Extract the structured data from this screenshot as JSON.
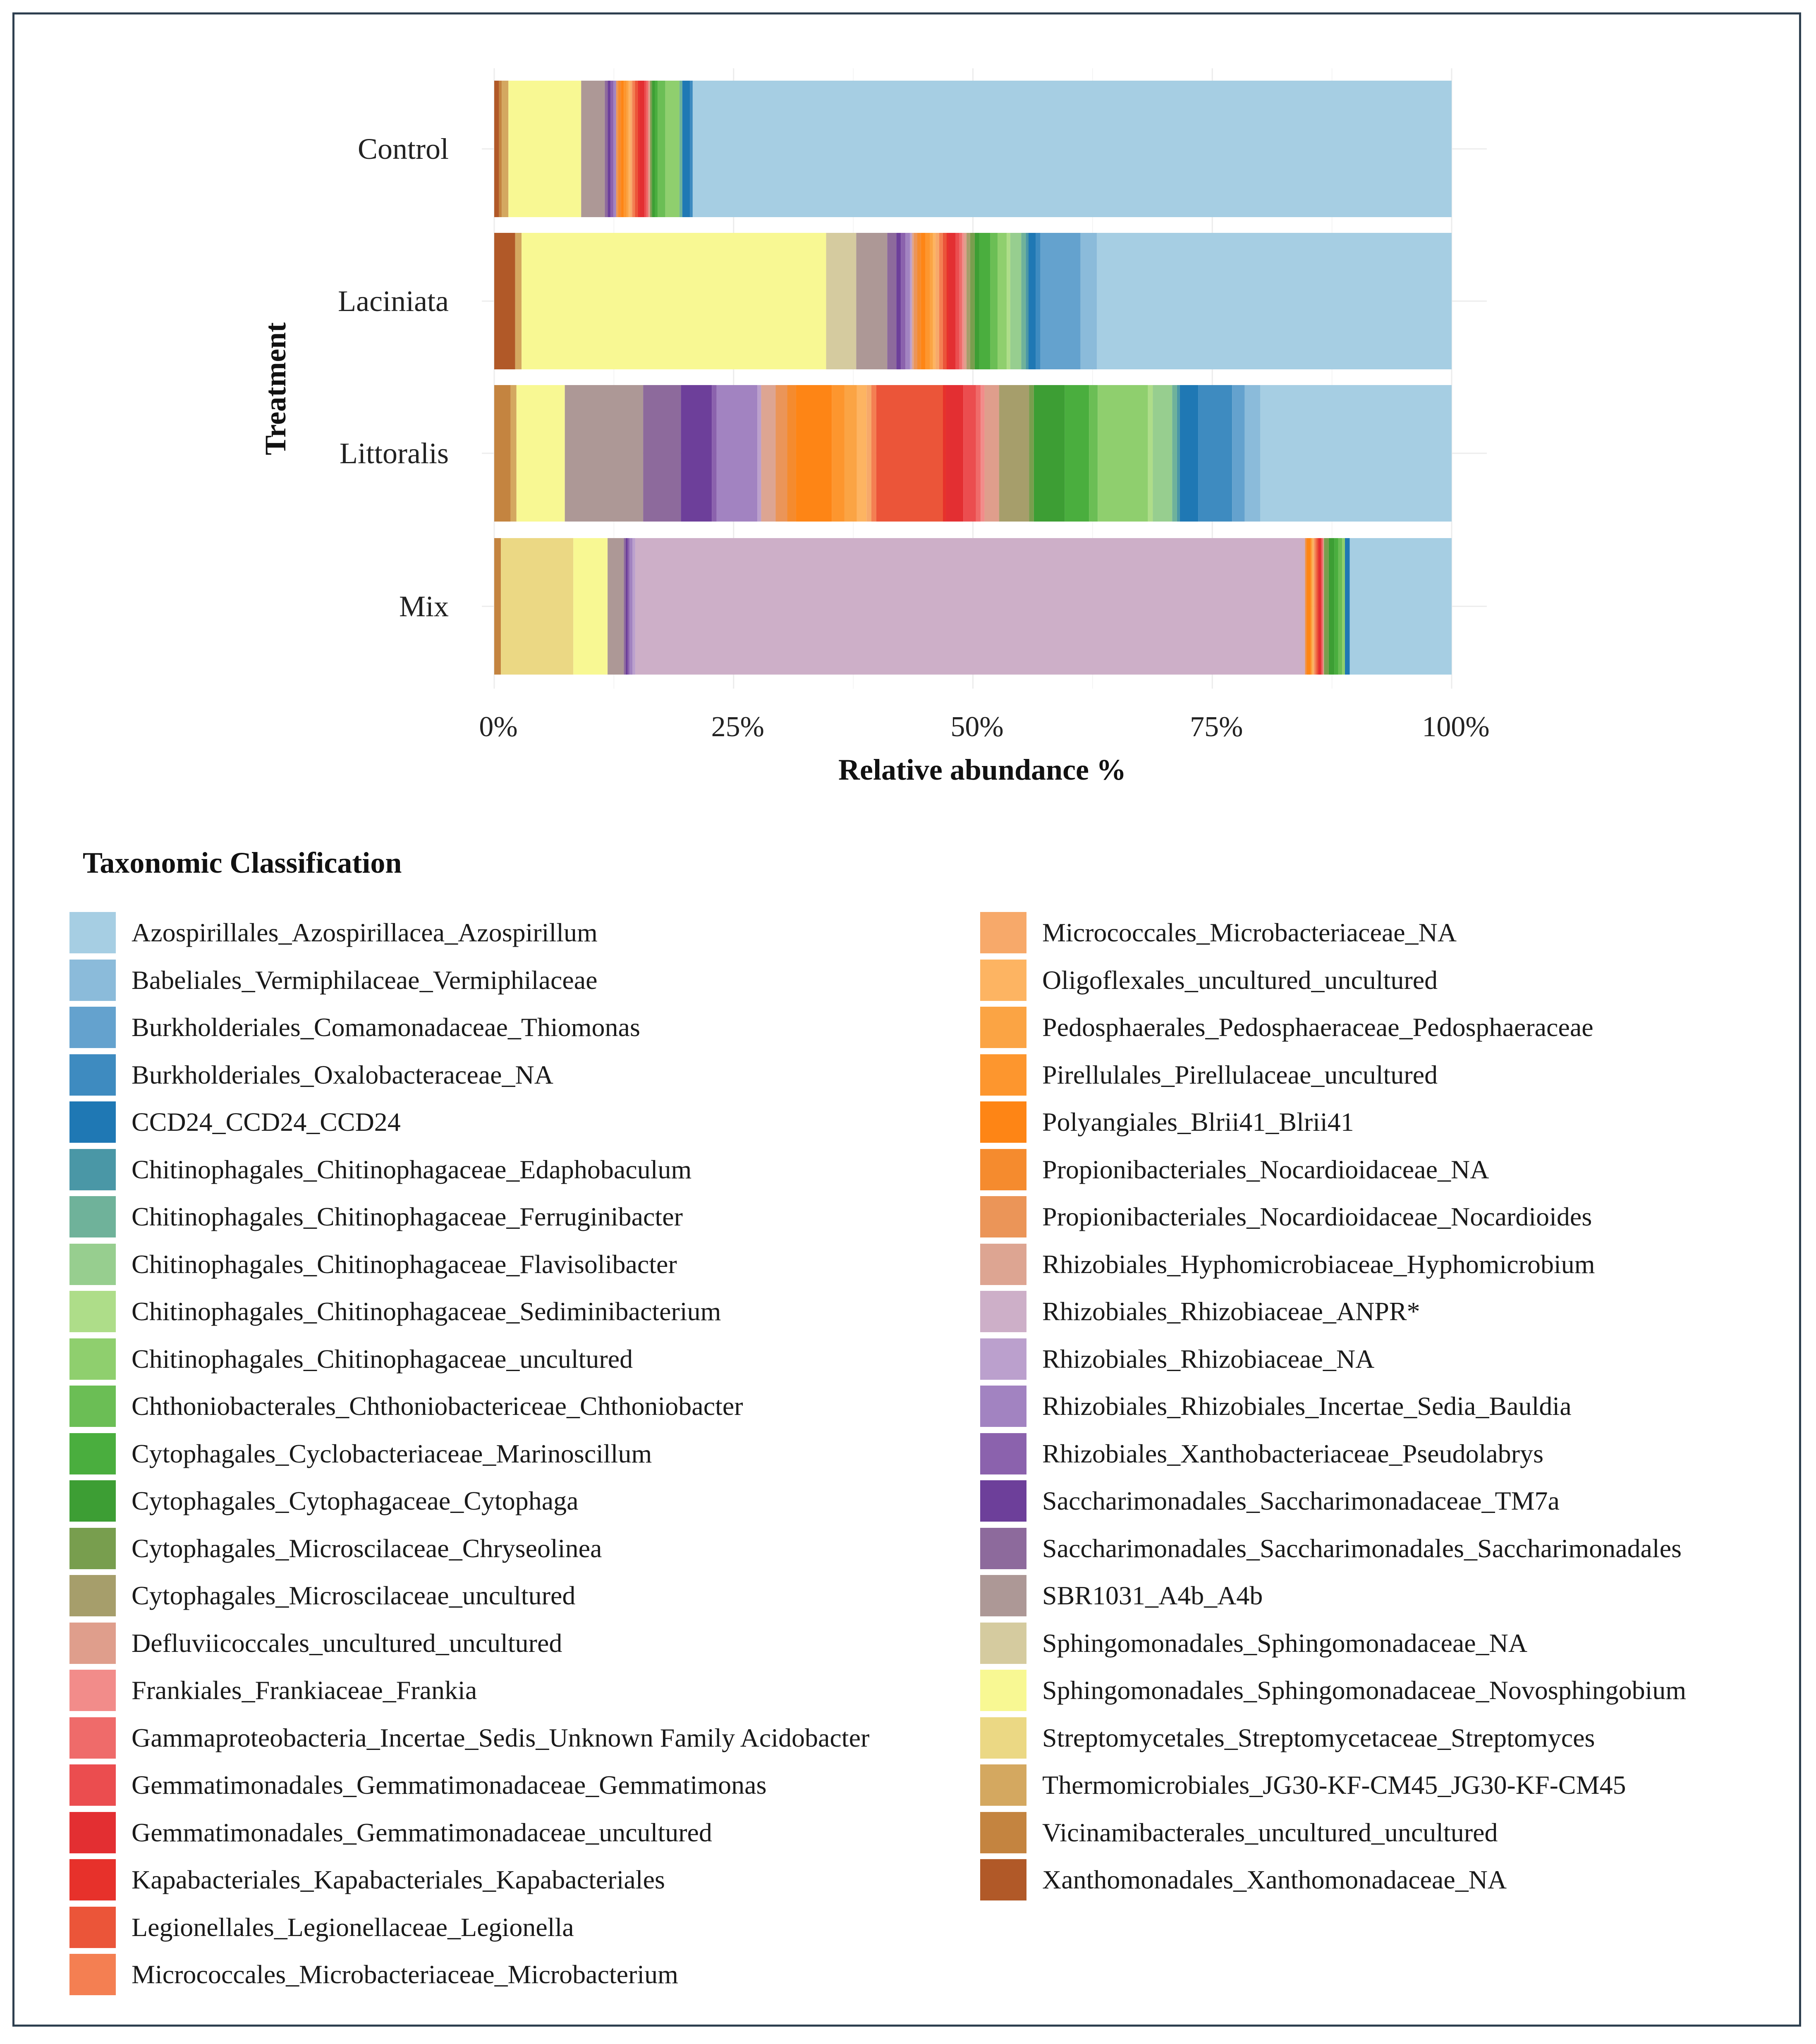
{
  "chart_data": {
    "type": "bar",
    "orientation": "horizontal",
    "stacked": true,
    "xlabel": "Relative abundance %",
    "ylabel": "Treatment",
    "xlim": [
      0,
      100
    ],
    "xticks": [
      "0%",
      "25%",
      "50%",
      "75%",
      "100%"
    ],
    "categories": [
      "Control",
      "Laciniata",
      "Littoralis",
      "Mix"
    ],
    "legend_title": "Taxonomic Classification",
    "series": [
      {
        "name": "Azospirillales_Azospirillacea_Azospirillum",
        "color": "#A6CEE3",
        "values": [
          80.3,
          38.9,
          19.8,
          10.7
        ]
      },
      {
        "name": "Babeliales_Vermiphilaceae_Vermiphilaceae",
        "color": "#8BBBDA",
        "values": [
          0,
          1.8,
          1.6,
          0
        ]
      },
      {
        "name": "Burkholderiales_Comamonadaceae_Thiomonas",
        "color": "#64A2CE",
        "values": [
          0,
          4.4,
          1.3,
          0
        ]
      },
      {
        "name": "Burkholderiales_Oxalobacteraceae_NA",
        "color": "#3E8BC0",
        "values": [
          0.3,
          0.5,
          3.5,
          0
        ]
      },
      {
        "name": "CCD24_CCD24_CCD24",
        "color": "#1F78B4",
        "values": [
          0.8,
          0.8,
          1.9,
          0.5
        ]
      },
      {
        "name": "Chitinophagales_Chitinophagaceae_Edaphobaculum",
        "color": "#4A97A6",
        "values": [
          0,
          0.3,
          0.3,
          0
        ]
      },
      {
        "name": "Chitinophagales_Chitinophagaceae_Ferruginibacter",
        "color": "#6FB29A",
        "values": [
          0.3,
          0.5,
          0.5,
          0
        ]
      },
      {
        "name": "Chitinophagales_Chitinophagaceae_Flavisolibacter",
        "color": "#97CE8F",
        "values": [
          0,
          1.2,
          2.0,
          0
        ]
      },
      {
        "name": "Chitinophagales_Chitinophagaceae_Sediminibacterium",
        "color": "#AEDD89",
        "values": [
          0,
          0.4,
          0.5,
          0
        ]
      },
      {
        "name": "Chitinophagales_Chitinophagaceae_uncultured",
        "color": "#8FCF6E",
        "values": [
          1.5,
          1.0,
          5.2,
          0.3
        ]
      },
      {
        "name": "Chthoniobacterales_Chthoniobactericeae_Chthoniobacter",
        "color": "#6BBE55",
        "values": [
          0.8,
          0.8,
          0.9,
          0.4
        ]
      },
      {
        "name": "Cytophagales_Cyclobacteriaceae_Marinoscillum",
        "color": "#4AAE3E",
        "values": [
          0.3,
          1.2,
          2.5,
          0.4
        ]
      },
      {
        "name": "Cytophagales_Cytophagaceae_Cytophaga",
        "color": "#3D9E34",
        "values": [
          0.3,
          0.5,
          3.2,
          0.6
        ]
      },
      {
        "name": "Cytophagales_Microscilaceae_Chryseolinea",
        "color": "#789E4E",
        "values": [
          0.2,
          0.5,
          0.5,
          0.5
        ]
      },
      {
        "name": "Cytophagales_Microscilaceae_uncultured",
        "color": "#A69E6B",
        "values": [
          0,
          0.4,
          3.1,
          0
        ]
      },
      {
        "name": "Defluviicoccales_uncultured_uncultured",
        "color": "#DF9E8C",
        "values": [
          0.2,
          0.3,
          1.5,
          0.1
        ]
      },
      {
        "name": "Frankiales_Frankiaceae_Frankia",
        "color": "#F28C8A",
        "values": [
          0,
          0.2,
          0.4,
          0
        ]
      },
      {
        "name": "Gammaproteobacteria_Incertae_Sedis_Unknown Family Acidobacter",
        "color": "#EF6B6A",
        "values": [
          0.2,
          0.3,
          0.5,
          0.1
        ]
      },
      {
        "name": "Gemmatimonadales_Gemmatimonadaceae_Gemmatimonas",
        "color": "#EB4D4F",
        "values": [
          0.2,
          0.4,
          1.3,
          0.1
        ]
      },
      {
        "name": "Gemmatimonadales_Gemmatimonadaceae_uncultured",
        "color": "#E32F32",
        "values": [
          0.5,
          0.8,
          1.8,
          0.3
        ]
      },
      {
        "name": "Kapabacteriales_Kapabacteriales_Kapabacteriales",
        "color": "#E7312B",
        "values": [
          0.2,
          0.2,
          0.3,
          0
        ]
      },
      {
        "name": "Legionellales_Legionellaceae_Legionella",
        "color": "#EB5539",
        "values": [
          0.3,
          0.4,
          6.9,
          0.2
        ]
      },
      {
        "name": "Micrococcales_Microbacteriaceae_Microbacterium",
        "color": "#F47F52",
        "values": [
          0.3,
          0.4,
          0.5,
          0.2
        ]
      },
      {
        "name": "Micrococcales_Microbacteriaceae_NA",
        "color": "#F7A96A",
        "values": [
          0.2,
          0.4,
          0.5,
          0.1
        ]
      },
      {
        "name": "Oligoflexales_uncultured_uncultured",
        "color": "#FDB462",
        "values": [
          0.2,
          0.3,
          1.0,
          0.1
        ]
      },
      {
        "name": "Pedosphaerales_Pedosphaeraceae_Pedosphaeraceae",
        "color": "#FBA444",
        "values": [
          0.2,
          0.3,
          1.3,
          0.1
        ]
      },
      {
        "name": "Pirellulales_Pirellulaceae_uncultured",
        "color": "#FD962E",
        "values": [
          0.3,
          0.5,
          1.3,
          0.1
        ]
      },
      {
        "name": "Polyangiales_Blrii41_Blrii41",
        "color": "#FE8515",
        "values": [
          0.3,
          0.5,
          3.7,
          0.4
        ]
      },
      {
        "name": "Propionibacteriales_Nocardioidaceae_NA",
        "color": "#F58B2E",
        "values": [
          0.3,
          0.4,
          0.9,
          0.1
        ]
      },
      {
        "name": "Propionibacteriales_Nocardioidaceae_Nocardioides",
        "color": "#EB9558",
        "values": [
          0.2,
          0.4,
          1.2,
          0.1
        ]
      },
      {
        "name": "Rhizobiales_Hyphomicrobiaceae_Hyphomicrobium",
        "color": "#DDA592",
        "values": [
          0,
          0.2,
          1.5,
          0
        ]
      },
      {
        "name": "Rhizobiales_Rhizobiaceae_ANPR*",
        "color": "#CDAFC8",
        "values": [
          0,
          0,
          0,
          70.3
        ]
      },
      {
        "name": "Rhizobiales_Rhizobiaceae_NA",
        "color": "#BBA0CD",
        "values": [
          0,
          0.2,
          0.4,
          0.3
        ]
      },
      {
        "name": "Rhizobiales_Rhizobiales_Incertae_Sedia_Bauldia",
        "color": "#A283C1",
        "values": [
          0.3,
          0.5,
          4.2,
          0.3
        ]
      },
      {
        "name": "Rhizobiales_Xanthobacteriaceae_Pseudolabrys",
        "color": "#8B62AD",
        "values": [
          0.3,
          0.5,
          0.5,
          0.2
        ]
      },
      {
        "name": "Saccharimonadales_Saccharimonadaceae_TM7a",
        "color": "#6D3F9A",
        "values": [
          0.3,
          0.5,
          3.2,
          0.2
        ]
      },
      {
        "name": "Saccharimonadales_Saccharimonadales_Saccharimonadales",
        "color": "#8D6A9C",
        "values": [
          0.3,
          1.0,
          3.9,
          0.2
        ]
      },
      {
        "name": "SBR1031_A4b_A4b",
        "color": "#AD9896",
        "values": [
          2.5,
          3.4,
          8.1,
          1.7
        ]
      },
      {
        "name": "Sphingomonadales_Sphingomonadaceae_NA",
        "color": "#D5CB9F",
        "values": [
          0,
          3.3,
          0,
          0
        ]
      },
      {
        "name": "Sphingomonadales_Sphingomonadaceae_Novosphingobium",
        "color": "#F8F893",
        "values": [
          7.7,
          33.4,
          5.0,
          3.6
        ]
      },
      {
        "name": "Streptomycetales_Streptomycetaceae_Streptomyces",
        "color": "#EBD884",
        "values": [
          0,
          0,
          0,
          7.6
        ]
      },
      {
        "name": "Thermomicrobiales_JG30-KF-CM45_JG30-KF-CM45",
        "color": "#D4A860",
        "values": [
          0.7,
          0.7,
          0.6,
          0
        ]
      },
      {
        "name": "Vicinamibacterales_uncultured_uncultured",
        "color": "#C48440",
        "values": [
          0.3,
          0,
          1.7,
          0.7
        ]
      },
      {
        "name": "Xanthomonadales_Xanthomonadaceae_NA",
        "color": "#B15928",
        "values": [
          0.5,
          2.3,
          0,
          0
        ]
      }
    ]
  }
}
